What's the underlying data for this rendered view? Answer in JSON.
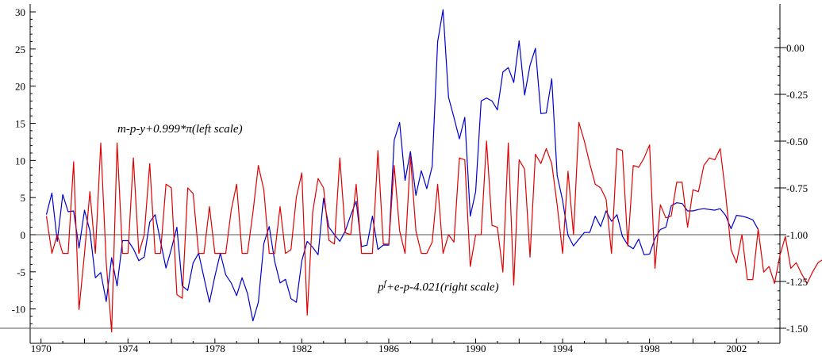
{
  "chart_data": {
    "type": "line",
    "title": "",
    "xlabel": "",
    "ylabel_left": "",
    "ylabel_right": "",
    "xlim": [
      1969.5,
      2004.0
    ],
    "ylim_left": [
      -13,
      31
    ],
    "ylim_right": [
      -1.5,
      0.2
    ],
    "x_ticks": [
      1970,
      1974,
      1978,
      1982,
      1986,
      1990,
      1994,
      1998,
      2002
    ],
    "y_ticks_left": [
      "30",
      "25",
      "20",
      "15",
      "10",
      "5",
      "0",
      "-5",
      "-10"
    ],
    "y_tick_values_left": [
      30,
      25,
      20,
      15,
      10,
      5,
      0,
      -5,
      -10
    ],
    "y_ticks_right": [
      "0.00",
      "-0.25",
      "-0.50",
      "-0.75",
      "-1.00",
      "-1.25",
      "-1.50"
    ],
    "y_tick_values_right": [
      0,
      -0.25,
      -0.5,
      -0.75,
      -1.0,
      -1.25,
      -1.5
    ],
    "grid": false,
    "reference_lines": [
      {
        "axis": "left",
        "value": 0
      },
      {
        "axis": "right",
        "value": -1.5
      }
    ],
    "annotations": [
      {
        "text": "m-p-y+0.999*π(left scale)",
        "x": 1969.5,
        "y_left": 14.3
      },
      {
        "text": "pf+e-p-4.021(right scale)",
        "x": 1985.5,
        "y_left": -7.0
      }
    ],
    "series": [
      {
        "axis": "left",
        "color": "#0000cc",
        "x_start": 1970.25,
        "x_step": 0.25,
        "values": [
          2.7,
          5.6,
          -0.9,
          5.4,
          3.1,
          3.2,
          -1.8,
          3.3,
          0.5,
          -5.8,
          -5.1,
          -9.0,
          -3.1,
          -6.9,
          -0.8,
          -0.8,
          -1.9,
          -3.5,
          -3.0,
          1.7,
          2.7,
          -0.9,
          -4.5,
          -1.9,
          1.0,
          -6.9,
          -7.5,
          -3.8,
          -2.5,
          -5.8,
          -9.1,
          -5.6,
          -2.5,
          -5.4,
          -6.5,
          -8.2,
          -5.8,
          -7.9,
          -11.6,
          -9.1,
          -1.2,
          1.1,
          -3.6,
          -6.5,
          -6.0,
          -8.6,
          -9.1,
          -3.5,
          -0.9,
          -1.7,
          -2.7,
          4.9,
          1.0,
          0.0,
          -0.9,
          0.5,
          2.6,
          4.5,
          -1.6,
          -1.4,
          2.5,
          -2.0,
          -1.4,
          -1.4,
          12.7,
          15.1,
          7.3,
          11.2,
          5.3,
          8.6,
          6.2,
          9.2,
          26.0,
          30.3,
          18.5,
          15.8,
          12.9,
          15.8,
          2.5,
          5.8,
          18.0,
          18.4,
          18.0,
          16.8,
          21.9,
          22.5,
          20.5,
          26.1,
          18.8,
          22.8,
          25.1,
          16.3,
          16.4,
          21.0,
          8.0,
          4.6,
          -0.1,
          -1.5,
          -0.6,
          0.3,
          0.3,
          2.5,
          1.1,
          3.2,
          1.8,
          2.7,
          -0.2,
          -1.4,
          -1.9,
          -0.6,
          -2.7,
          -2.6,
          -0.5,
          0.7,
          1.0,
          3.9,
          4.3,
          4.2,
          3.2,
          3.2,
          3.4,
          3.5,
          3.4,
          3.3,
          3.5,
          2.6,
          0.8,
          2.6,
          2.5,
          2.3,
          2.0,
          0.7
        ]
      },
      {
        "axis": "right",
        "color": "#e00000",
        "x_start": 1970.25,
        "x_step": 0.25,
        "values": [
          -0.9,
          -1.1,
          -1.0,
          -1.1,
          -1.1,
          -0.61,
          -1.4,
          -1.1,
          -0.77,
          -1.1,
          -0.51,
          -1.15,
          -1.52,
          -0.51,
          -1.1,
          -1.1,
          -0.59,
          -1.1,
          -1.0,
          -0.62,
          -1.1,
          -1.1,
          -0.73,
          -0.75,
          -1.32,
          -1.34,
          -0.75,
          -0.78,
          -1.1,
          -1.1,
          -0.85,
          -1.1,
          -1.1,
          -1.1,
          -0.87,
          -0.73,
          -1.1,
          -1.1,
          -0.88,
          -0.63,
          -0.76,
          -1.1,
          -1.1,
          -0.85,
          -1.1,
          -1.08,
          -0.8,
          -0.67,
          -1.43,
          -0.88,
          -0.7,
          -0.75,
          -1.03,
          -1.05,
          -0.59,
          -0.99,
          -1.0,
          -0.73,
          -1.1,
          -1.1,
          -1.1,
          -0.55,
          -1.05,
          -1.05,
          -0.63,
          -0.98,
          -1.1,
          -0.58,
          -0.98,
          -1.1,
          -1.1,
          -1.04,
          -0.73,
          -1.1,
          -1.0,
          -1.04,
          -0.59,
          -0.6,
          -1.17,
          -1.0,
          -1.0,
          -0.5,
          -0.95,
          -0.96,
          -1.2,
          -0.51,
          -1.27,
          -0.6,
          -0.65,
          -1.12,
          -0.57,
          -0.62,
          -0.54,
          -0.62,
          -0.84,
          -1.1,
          -0.66,
          -1.0,
          -0.4,
          -0.5,
          -0.62,
          -0.73,
          -0.75,
          -0.81,
          -1.1,
          -0.54,
          -0.55,
          -1.06,
          -0.63,
          -0.64,
          -0.59,
          -0.52,
          -1.18,
          -0.84,
          -0.91,
          -0.9,
          -0.72,
          -0.72,
          -0.96,
          -0.76,
          -0.77,
          -0.63,
          -0.59,
          -0.6,
          -0.54,
          -0.78,
          -1.08,
          -1.15,
          -1.0,
          -1.24,
          -1.24,
          -0.97,
          -1.2,
          -1.17,
          -1.26,
          -1.11,
          -1.01,
          -1.18,
          -1.15,
          -1.21,
          -1.26,
          -1.2,
          -1.15,
          -1.13,
          -1.16,
          -1.16,
          -1.13
        ]
      }
    ]
  }
}
